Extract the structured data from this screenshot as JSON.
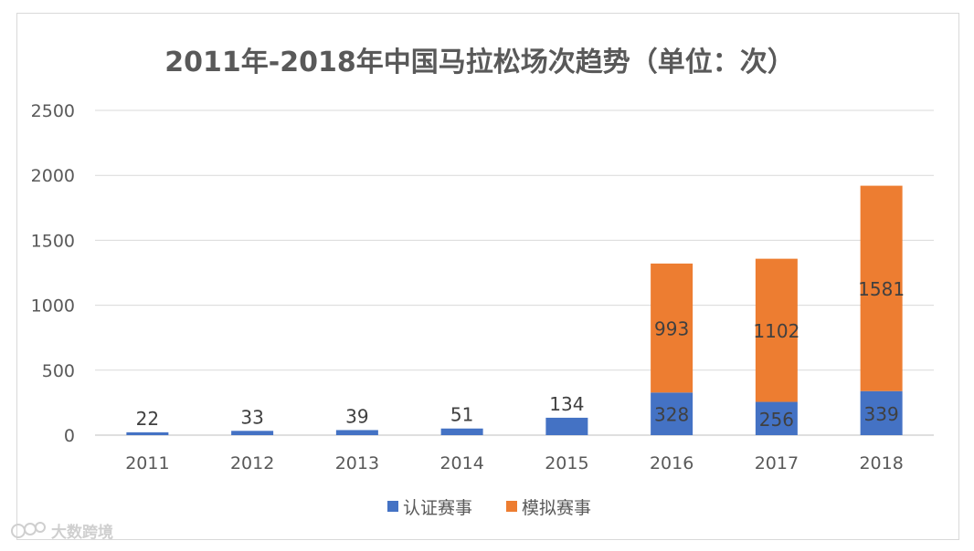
{
  "chart_data": {
    "type": "bar",
    "stacked": true,
    "title": "2011年-2018年中国马拉松场次趋势（单位：次）",
    "categories": [
      "2011",
      "2012",
      "2013",
      "2014",
      "2015",
      "2016",
      "2017",
      "2018"
    ],
    "series": [
      {
        "name": "认证赛事",
        "color": "#4472c4",
        "values": [
          22,
          33,
          39,
          51,
          134,
          328,
          256,
          339
        ]
      },
      {
        "name": "模拟赛事",
        "color": "#ed7d31",
        "values": [
          0,
          0,
          0,
          0,
          0,
          993,
          1102,
          1581
        ]
      }
    ],
    "ylim": [
      0,
      2500
    ],
    "yticks": [
      0,
      500,
      1000,
      1500,
      2000,
      2500
    ],
    "grid": true,
    "legend": "bottom"
  },
  "watermark": "大数跨境"
}
